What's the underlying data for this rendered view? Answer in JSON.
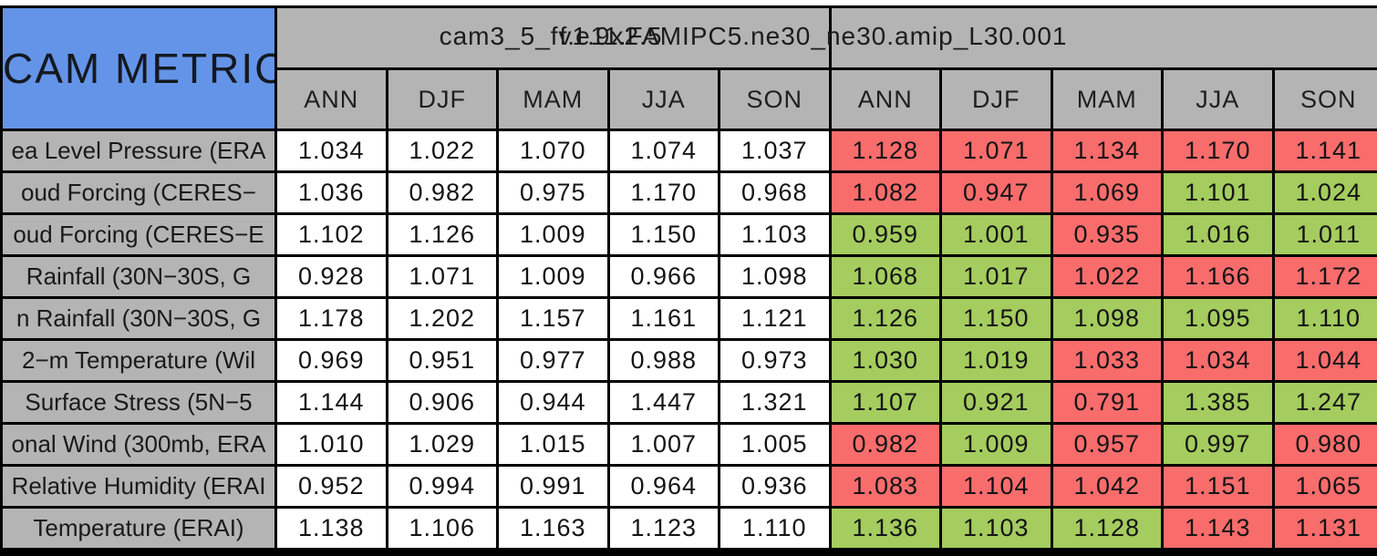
{
  "corner_label": "CAM METRICS",
  "colors": {
    "header_gray": "#b4b4b4",
    "corner_blue": "#6494e8",
    "cell_red": "#f96c6c",
    "cell_green": "#a4cc5e",
    "cell_white": "#ffffff",
    "grid_black": "#000000"
  },
  "chart_data": {
    "type": "table",
    "corner_label": "CAM METRICS",
    "title_left_model": "cam3_5_fv1.9x2.5",
    "title_right_model": "f.e11.FAMIPC5.ne30_ne30.amip_L30.001",
    "seasons": [
      "ANN",
      "DJF",
      "MAM",
      "JJA",
      "SON"
    ],
    "column_groups": [
      {
        "model": "cam3_5_fv1.9x2.5",
        "cell_style": "white"
      },
      {
        "model": "f.e11.FAMIPC5.ne30_ne30.amip_L30.001",
        "cell_style": "red-green graded"
      }
    ],
    "rows": [
      {
        "metric_visible": "ea Level Pressure (ERA",
        "left_values": [
          "1.034",
          "1.022",
          "1.070",
          "1.074",
          "1.037"
        ],
        "right_values": [
          "1.128",
          "1.071",
          "1.134",
          "1.170",
          "1.141"
        ],
        "right_colors": [
          "red",
          "red",
          "red",
          "red",
          "red"
        ]
      },
      {
        "metric_visible": "oud Forcing (CERES−",
        "left_values": [
          "1.036",
          "0.982",
          "0.975",
          "1.170",
          "0.968"
        ],
        "right_values": [
          "1.082",
          "0.947",
          "1.069",
          "1.101",
          "1.024"
        ],
        "right_colors": [
          "red",
          "red",
          "red",
          "green",
          "green"
        ]
      },
      {
        "metric_visible": "oud Forcing (CERES−E",
        "left_values": [
          "1.102",
          "1.126",
          "1.009",
          "1.150",
          "1.103"
        ],
        "right_values": [
          "0.959",
          "1.001",
          "0.935",
          "1.016",
          "1.011"
        ],
        "right_colors": [
          "green",
          "green",
          "red",
          "green",
          "green"
        ]
      },
      {
        "metric_visible": "Rainfall (30N−30S, G",
        "left_values": [
          "0.928",
          "1.071",
          "1.009",
          "0.966",
          "1.098"
        ],
        "right_values": [
          "1.068",
          "1.017",
          "1.022",
          "1.166",
          "1.172"
        ],
        "right_colors": [
          "green",
          "green",
          "red",
          "red",
          "red"
        ]
      },
      {
        "metric_visible": "n Rainfall (30N−30S, G",
        "left_values": [
          "1.178",
          "1.202",
          "1.157",
          "1.161",
          "1.121"
        ],
        "right_values": [
          "1.126",
          "1.150",
          "1.098",
          "1.095",
          "1.110"
        ],
        "right_colors": [
          "green",
          "green",
          "green",
          "green",
          "green"
        ]
      },
      {
        "metric_visible": "2−m Temperature (Wil",
        "left_values": [
          "0.969",
          "0.951",
          "0.977",
          "0.988",
          "0.973"
        ],
        "right_values": [
          "1.030",
          "1.019",
          "1.033",
          "1.034",
          "1.044"
        ],
        "right_colors": [
          "green",
          "green",
          "red",
          "red",
          "red"
        ]
      },
      {
        "metric_visible": "Surface Stress (5N−5",
        "left_values": [
          "1.144",
          "0.906",
          "0.944",
          "1.447",
          "1.321"
        ],
        "right_values": [
          "1.107",
          "0.921",
          "0.791",
          "1.385",
          "1.247"
        ],
        "right_colors": [
          "green",
          "green",
          "red",
          "green",
          "green"
        ]
      },
      {
        "metric_visible": "onal Wind (300mb, ERA",
        "left_values": [
          "1.010",
          "1.029",
          "1.015",
          "1.007",
          "1.005"
        ],
        "right_values": [
          "0.982",
          "1.009",
          "0.957",
          "0.997",
          "0.980"
        ],
        "right_colors": [
          "red",
          "green",
          "red",
          "green",
          "red"
        ]
      },
      {
        "metric_visible": "Relative Humidity (ERAI",
        "left_values": [
          "0.952",
          "0.994",
          "0.991",
          "0.964",
          "0.936"
        ],
        "right_values": [
          "1.083",
          "1.104",
          "1.042",
          "1.151",
          "1.065"
        ],
        "right_colors": [
          "red",
          "red",
          "red",
          "red",
          "red"
        ]
      },
      {
        "metric_visible": "Temperature (ERAI)",
        "left_values": [
          "1.138",
          "1.106",
          "1.163",
          "1.123",
          "1.110"
        ],
        "right_values": [
          "1.136",
          "1.103",
          "1.128",
          "1.143",
          "1.131"
        ],
        "right_colors": [
          "green",
          "green",
          "green",
          "red",
          "red"
        ]
      }
    ]
  }
}
